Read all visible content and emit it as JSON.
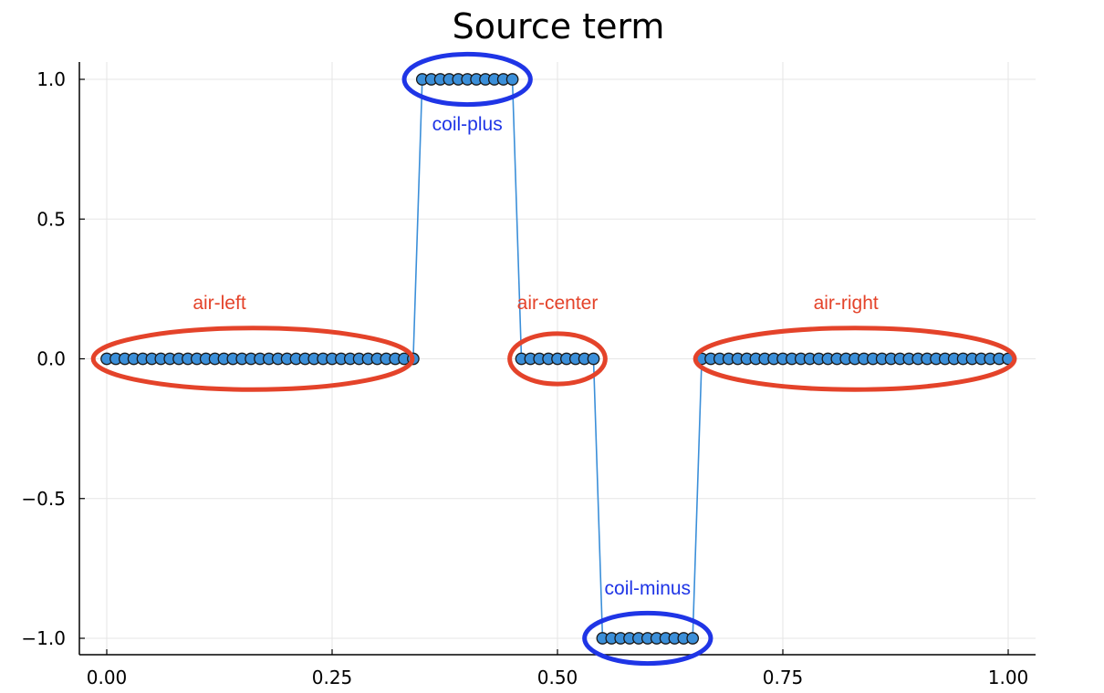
{
  "chart_data": {
    "type": "scatter",
    "title": "Source term",
    "xlabel": "",
    "ylabel": "",
    "xlim": [
      0.0,
      1.0
    ],
    "ylim": [
      -1.05,
      1.05
    ],
    "x_ticks": [
      "0.00",
      "0.25",
      "0.50",
      "0.75",
      "1.00"
    ],
    "x_tick_values": [
      0.0,
      0.25,
      0.5,
      0.75,
      1.0
    ],
    "y_ticks": [
      "1.0",
      "0.5",
      "0.0",
      "−0.5",
      "−1.0"
    ],
    "y_tick_values": [
      1.0,
      0.5,
      0.0,
      -0.5,
      -1.0
    ],
    "grid": true,
    "legend": "none",
    "series_color": "#3b8fd9",
    "marker_edge_color": "#1a1a1a",
    "points": {
      "count": 101,
      "x_start": 0.0,
      "x_step": 0.01,
      "segments": [
        {
          "x_from": 0.0,
          "x_to": 0.34,
          "y": 0
        },
        {
          "x_from": 0.35,
          "x_to": 0.45,
          "y": 1
        },
        {
          "x_from": 0.46,
          "x_to": 0.54,
          "y": 0
        },
        {
          "x_from": 0.55,
          "x_to": 0.65,
          "y": -1
        },
        {
          "x_from": 0.66,
          "x_to": 1.0,
          "y": 0
        }
      ]
    },
    "annotations": [
      {
        "label": "coil-plus",
        "color": "#1f35e6",
        "x": 0.4,
        "y": 0.84,
        "ellipse": {
          "cx": 0.4,
          "cy": 1.0,
          "rx": 0.07,
          "ry": 0.09
        }
      },
      {
        "label": "air-left",
        "color": "#e4432a",
        "x": 0.125,
        "y": 0.2,
        "ellipse": {
          "cx": 0.162,
          "cy": 0.0,
          "rx": 0.177,
          "ry": 0.11
        }
      },
      {
        "label": "air-center",
        "color": "#e4432a",
        "x": 0.5,
        "y": 0.2,
        "ellipse": {
          "cx": 0.5,
          "cy": 0.0,
          "rx": 0.053,
          "ry": 0.09
        }
      },
      {
        "label": "air-right",
        "color": "#e4432a",
        "x": 0.82,
        "y": 0.2,
        "ellipse": {
          "cx": 0.83,
          "cy": 0.0,
          "rx": 0.177,
          "ry": 0.11
        }
      },
      {
        "label": "coil-minus",
        "color": "#1f35e6",
        "x": 0.6,
        "y": -0.82,
        "ellipse": {
          "cx": 0.6,
          "cy": -1.0,
          "rx": 0.07,
          "ry": 0.09
        }
      }
    ]
  }
}
